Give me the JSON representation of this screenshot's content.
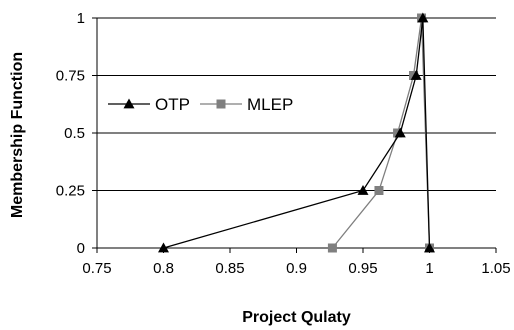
{
  "chart_data": {
    "type": "line",
    "title": "",
    "xlabel": "Project Qulaty",
    "ylabel": "Membership Function",
    "xlim": [
      0.75,
      1.05
    ],
    "ylim": [
      0,
      1
    ],
    "x_ticks": [
      "0.75",
      "0.8",
      "0.85",
      "0.9",
      "0.95",
      "1",
      "1.05"
    ],
    "y_ticks": [
      "0",
      "0.25",
      "0.5",
      "0.75",
      "1"
    ],
    "grid": "horizontal",
    "legend_position": "left",
    "series": [
      {
        "name": "OTP",
        "color": "#000000",
        "marker": "triangle",
        "x": [
          0.8,
          0.95,
          0.978,
          0.99,
          0.995,
          1.0
        ],
        "y": [
          0,
          0.25,
          0.5,
          0.75,
          1,
          0
        ]
      },
      {
        "name": "MLEP",
        "color": "#7f7f7f",
        "marker": "square",
        "x": [
          0.927,
          0.962,
          0.976,
          0.988,
          0.994,
          1.0
        ],
        "y": [
          0,
          0.25,
          0.5,
          0.75,
          1,
          0
        ]
      }
    ]
  }
}
